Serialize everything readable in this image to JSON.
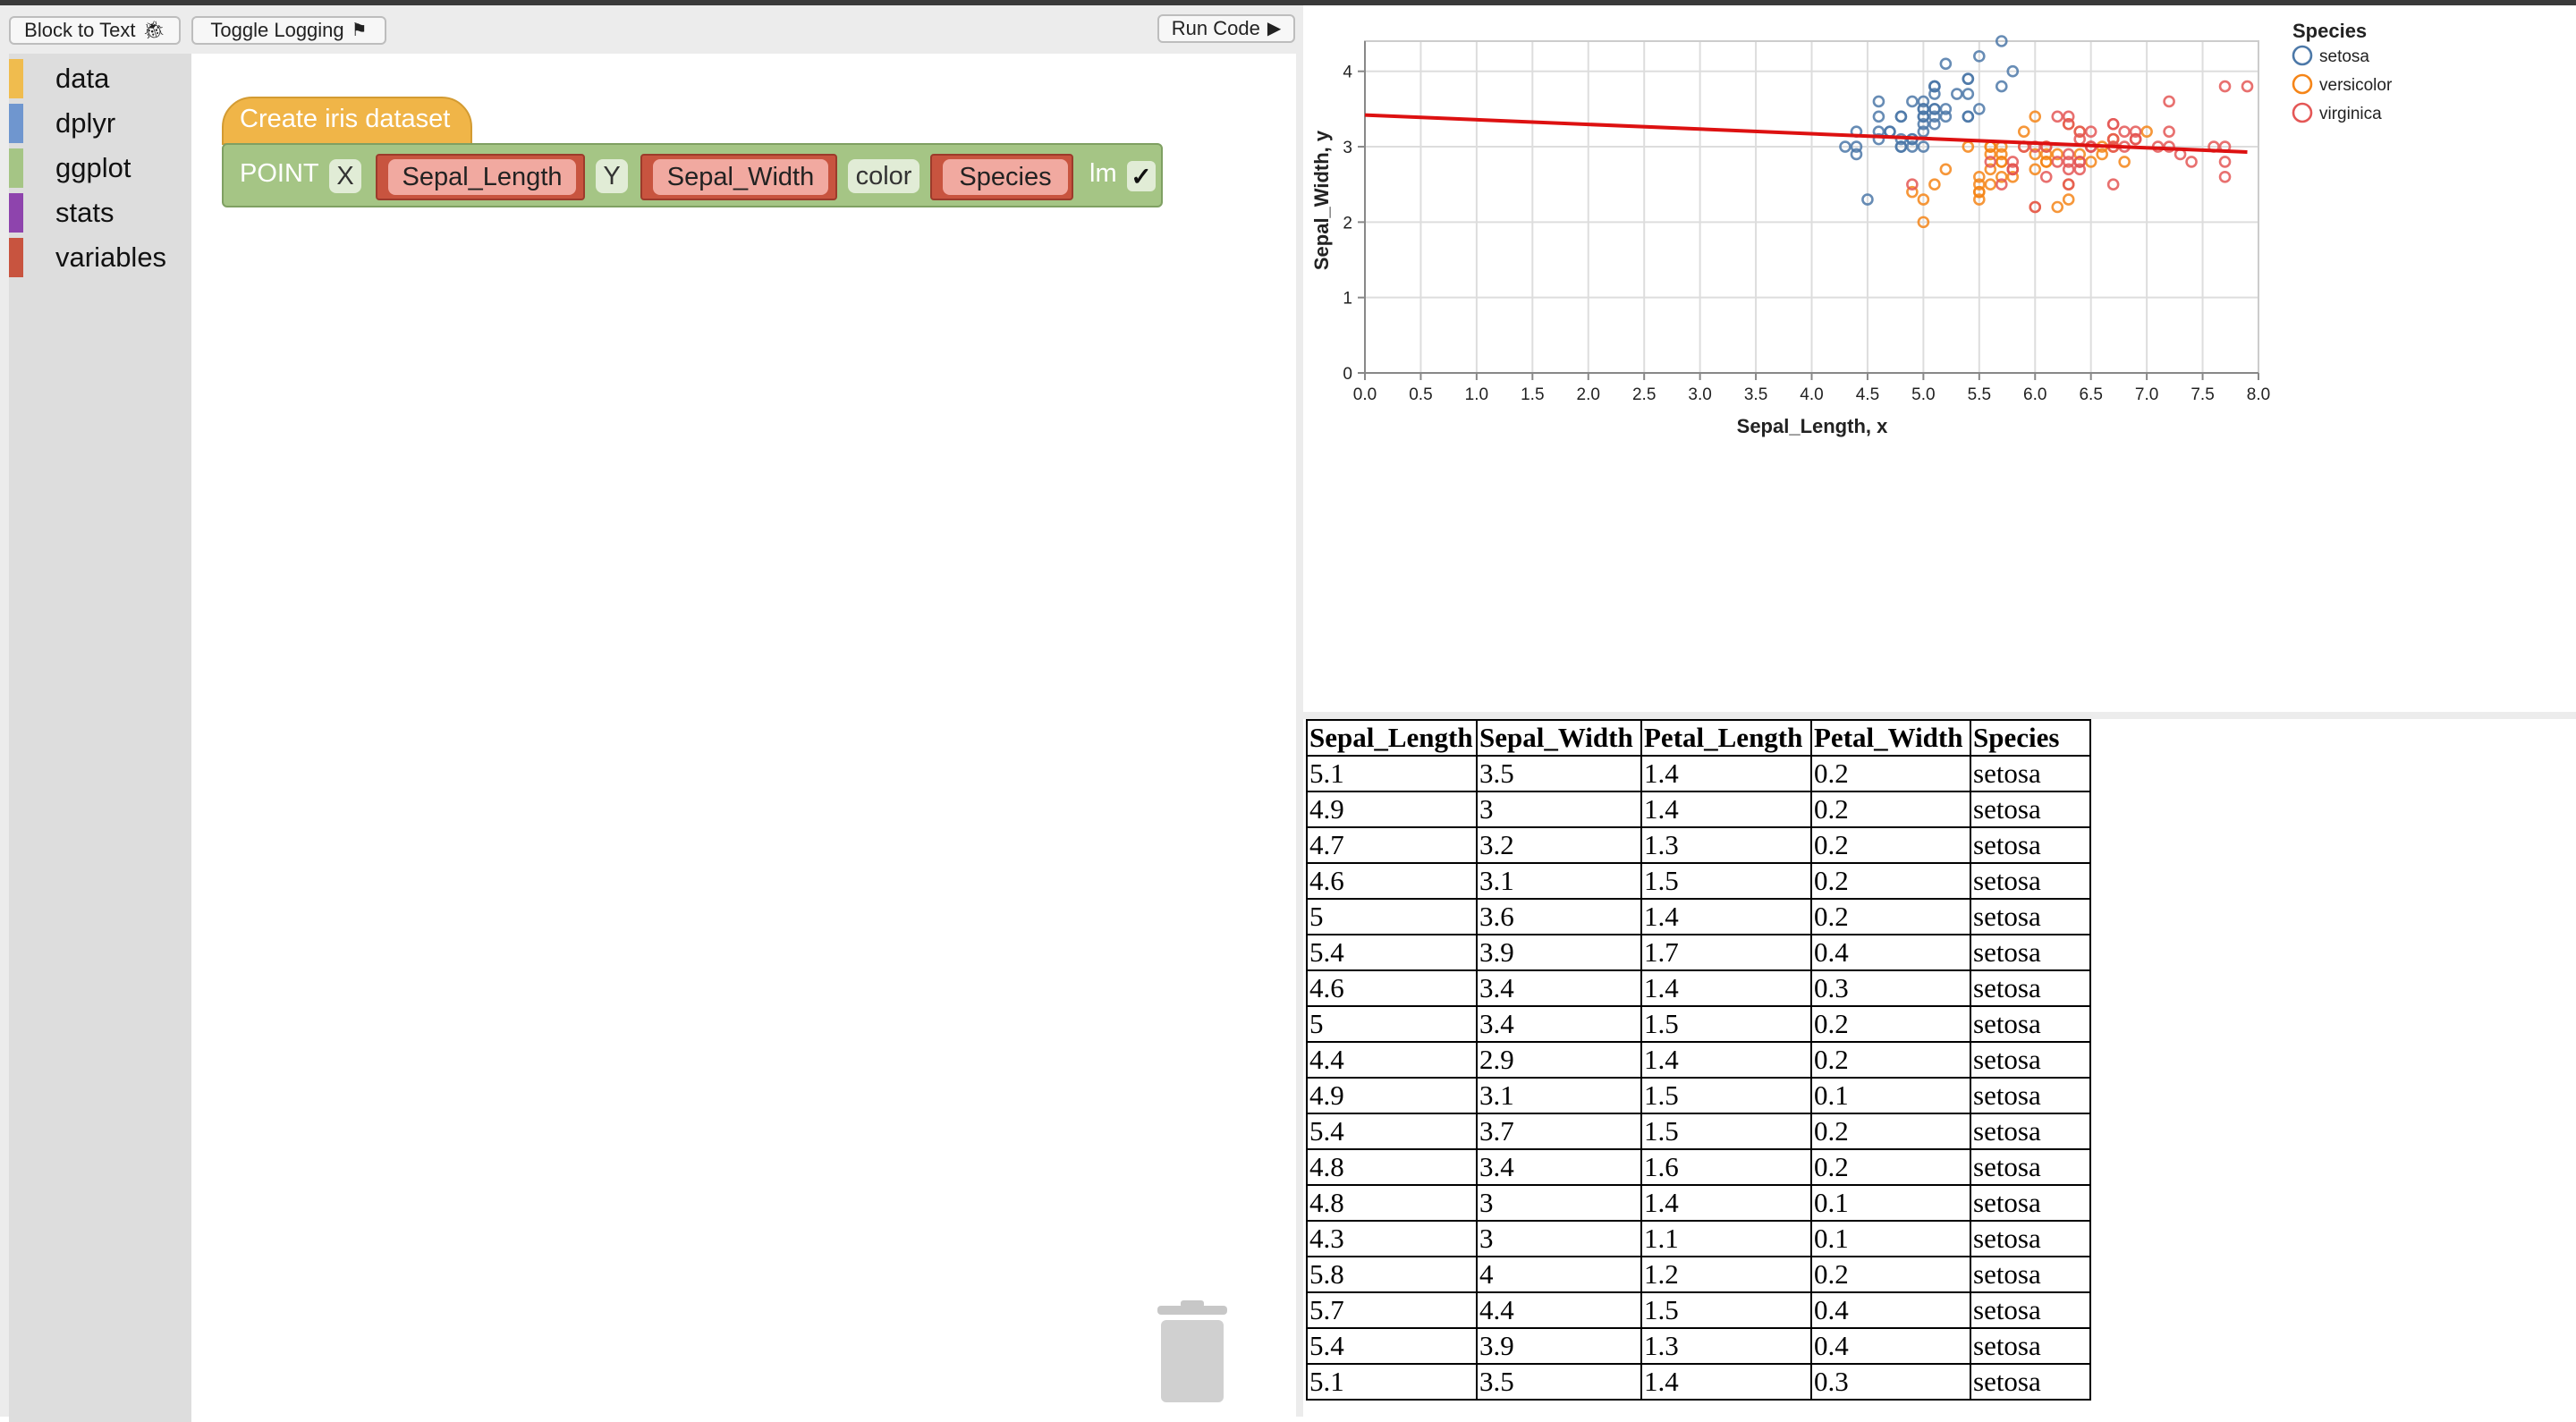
{
  "toolbar": {
    "block_to_text": "Block to Text",
    "toggle_logging": "Toggle Logging",
    "run_code": "Run Code"
  },
  "toolbox": {
    "categories": [
      {
        "label": "data",
        "color": "#f0bc4e"
      },
      {
        "label": "dplyr",
        "color": "#6f96cf"
      },
      {
        "label": "ggplot",
        "color": "#a5c585"
      },
      {
        "label": "stats",
        "color": "#8e44ad"
      },
      {
        "label": "variables",
        "color": "#c8543f"
      }
    ]
  },
  "blocks": {
    "hat_label": "Create iris dataset",
    "point_label": "POINT",
    "x_label": "X",
    "x_var": "Sepal_Length",
    "y_label": "Y",
    "y_var": "Sepal_Width",
    "color_label": "color",
    "color_var": "Species",
    "lm_label": "lm",
    "lm_check": "✓"
  },
  "chart_data": {
    "type": "scatter",
    "xlabel": "Sepal_Length, x",
    "ylabel": "Sepal_Width, y",
    "xlim": [
      0,
      8
    ],
    "ylim": [
      0,
      4.4
    ],
    "x_ticks": [
      "0.0",
      "0.5",
      "1.0",
      "1.5",
      "2.0",
      "2.5",
      "3.0",
      "3.5",
      "4.0",
      "4.5",
      "5.0",
      "5.5",
      "6.0",
      "6.5",
      "7.0",
      "7.5",
      "8.0"
    ],
    "y_ticks": [
      "0",
      "1",
      "2",
      "3",
      "4"
    ],
    "grid": true,
    "legend_title": "Species",
    "legend_position": "top-right",
    "series": [
      {
        "name": "setosa",
        "color": "#4c78a8",
        "x": [
          5.1,
          4.9,
          4.7,
          4.6,
          5.0,
          5.4,
          4.6,
          5.0,
          4.4,
          4.9,
          5.4,
          4.8,
          4.8,
          4.3,
          5.8,
          5.7,
          5.4,
          5.1,
          5.7,
          5.1,
          5.4,
          5.1,
          4.6,
          5.1,
          4.8,
          5.0,
          5.0,
          5.2,
          5.2,
          4.7,
          4.8,
          5.4,
          5.2,
          5.5,
          4.9,
          5.0,
          5.5,
          4.9,
          4.4,
          5.1,
          5.0,
          4.5,
          4.4,
          5.0,
          5.1,
          4.8,
          5.1,
          4.6,
          5.3,
          5.0
        ],
        "y": [
          3.5,
          3.0,
          3.2,
          3.1,
          3.6,
          3.9,
          3.4,
          3.4,
          2.9,
          3.1,
          3.7,
          3.4,
          3.0,
          3.0,
          4.0,
          4.4,
          3.9,
          3.5,
          3.8,
          3.8,
          3.4,
          3.7,
          3.6,
          3.3,
          3.4,
          3.0,
          3.4,
          3.5,
          3.4,
          3.2,
          3.1,
          3.4,
          4.1,
          4.2,
          3.1,
          3.2,
          3.5,
          3.6,
          3.0,
          3.4,
          3.5,
          2.3,
          3.2,
          3.5,
          3.8,
          3.0,
          3.8,
          3.2,
          3.7,
          3.3
        ]
      },
      {
        "name": "versicolor",
        "color": "#f58518",
        "x": [
          7.0,
          6.4,
          6.9,
          5.5,
          6.5,
          5.7,
          6.3,
          4.9,
          6.6,
          5.2,
          5.0,
          5.9,
          6.0,
          6.1,
          5.6,
          6.7,
          5.6,
          5.8,
          6.2,
          5.6,
          5.9,
          6.1,
          6.3,
          6.1,
          6.4,
          6.6,
          6.8,
          6.7,
          6.0,
          5.7,
          5.5,
          5.5,
          5.8,
          6.0,
          5.4,
          6.0,
          6.7,
          6.3,
          5.6,
          5.5,
          5.5,
          6.1,
          5.8,
          5.0,
          5.6,
          5.7,
          5.7,
          6.2,
          5.1,
          5.7
        ],
        "y": [
          3.2,
          3.2,
          3.1,
          2.3,
          2.8,
          2.8,
          3.3,
          2.4,
          2.9,
          2.7,
          2.0,
          3.0,
          2.2,
          2.9,
          2.9,
          3.1,
          3.0,
          2.7,
          2.2,
          2.5,
          3.2,
          2.8,
          2.5,
          2.8,
          2.9,
          3.0,
          2.8,
          3.0,
          2.9,
          2.6,
          2.4,
          2.4,
          2.7,
          2.7,
          3.0,
          3.4,
          3.1,
          2.3,
          3.0,
          2.5,
          2.6,
          3.0,
          2.6,
          2.3,
          2.7,
          3.0,
          2.9,
          2.9,
          2.5,
          2.8
        ]
      },
      {
        "name": "virginica",
        "color": "#e45756",
        "x": [
          6.3,
          5.8,
          7.1,
          6.3,
          6.5,
          7.6,
          4.9,
          7.3,
          6.7,
          7.2,
          6.5,
          6.4,
          6.8,
          5.7,
          5.8,
          6.4,
          6.5,
          7.7,
          7.7,
          6.0,
          6.9,
          5.6,
          7.7,
          6.3,
          6.7,
          7.2,
          6.2,
          6.1,
          6.4,
          7.2,
          7.4,
          7.9,
          6.4,
          6.3,
          6.1,
          7.7,
          6.3,
          6.4,
          6.0,
          6.9,
          6.7,
          6.9,
          5.8,
          6.8,
          6.7,
          6.7,
          6.3,
          6.5,
          6.2,
          5.9
        ],
        "y": [
          3.3,
          2.7,
          3.0,
          2.9,
          3.0,
          3.0,
          2.5,
          2.9,
          2.5,
          3.6,
          3.2,
          2.7,
          3.0,
          2.5,
          2.8,
          3.2,
          3.0,
          3.8,
          2.6,
          2.2,
          3.2,
          2.8,
          2.8,
          2.7,
          3.3,
          3.2,
          2.8,
          3.0,
          2.8,
          3.0,
          2.8,
          3.8,
          2.8,
          2.8,
          2.6,
          3.0,
          3.4,
          3.1,
          3.0,
          3.1,
          3.1,
          3.1,
          2.7,
          3.2,
          3.3,
          3.0,
          2.5,
          3.0,
          3.4,
          3.0
        ]
      }
    ],
    "lm_line": {
      "color": "#dd1111",
      "x": [
        0,
        7.9
      ],
      "y": [
        3.42,
        2.93
      ]
    }
  },
  "table": {
    "headers": [
      "Sepal_Length",
      "Sepal_Width",
      "Petal_Length",
      "Petal_Width",
      "Species"
    ],
    "rows": [
      [
        "5.1",
        "3.5",
        "1.4",
        "0.2",
        "setosa"
      ],
      [
        "4.9",
        "3",
        "1.4",
        "0.2",
        "setosa"
      ],
      [
        "4.7",
        "3.2",
        "1.3",
        "0.2",
        "setosa"
      ],
      [
        "4.6",
        "3.1",
        "1.5",
        "0.2",
        "setosa"
      ],
      [
        "5",
        "3.6",
        "1.4",
        "0.2",
        "setosa"
      ],
      [
        "5.4",
        "3.9",
        "1.7",
        "0.4",
        "setosa"
      ],
      [
        "4.6",
        "3.4",
        "1.4",
        "0.3",
        "setosa"
      ],
      [
        "5",
        "3.4",
        "1.5",
        "0.2",
        "setosa"
      ],
      [
        "4.4",
        "2.9",
        "1.4",
        "0.2",
        "setosa"
      ],
      [
        "4.9",
        "3.1",
        "1.5",
        "0.1",
        "setosa"
      ],
      [
        "5.4",
        "3.7",
        "1.5",
        "0.2",
        "setosa"
      ],
      [
        "4.8",
        "3.4",
        "1.6",
        "0.2",
        "setosa"
      ],
      [
        "4.8",
        "3",
        "1.4",
        "0.1",
        "setosa"
      ],
      [
        "4.3",
        "3",
        "1.1",
        "0.1",
        "setosa"
      ],
      [
        "5.8",
        "4",
        "1.2",
        "0.2",
        "setosa"
      ],
      [
        "5.7",
        "4.4",
        "1.5",
        "0.4",
        "setosa"
      ],
      [
        "5.4",
        "3.9",
        "1.3",
        "0.4",
        "setosa"
      ],
      [
        "5.1",
        "3.5",
        "1.4",
        "0.3",
        "setosa"
      ]
    ]
  }
}
